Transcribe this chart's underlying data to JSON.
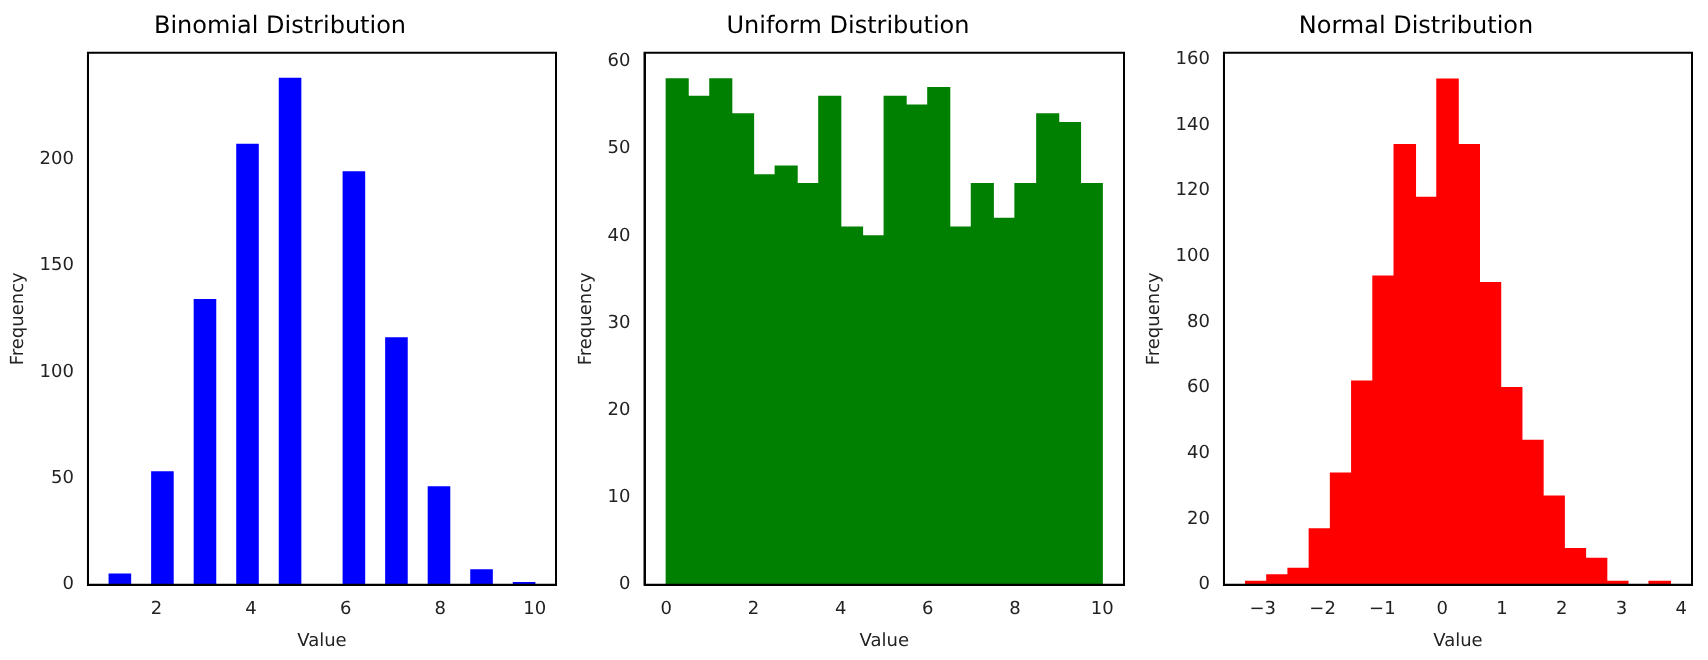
{
  "chart_data": [
    {
      "type": "histogram",
      "title": "Binomial Distribution",
      "xlabel": "Value",
      "ylabel": "Frequency",
      "color": "#0000ff",
      "bins": [
        1,
        1.45,
        1.9,
        2.35,
        2.8,
        3.25,
        3.7,
        4.15,
        4.6,
        5.05,
        5.5,
        5.95,
        6.4,
        6.85,
        7.3,
        7.75,
        8.2,
        8.65,
        9.1,
        9.55,
        10
      ],
      "values": [
        5,
        0,
        53,
        0,
        134,
        0,
        207,
        0,
        238,
        0,
        0,
        194,
        0,
        116,
        0,
        46,
        0,
        7,
        0,
        1
      ],
      "xlim": [
        0.55,
        10.45
      ],
      "ylim": [
        0,
        250
      ],
      "xticks": [
        2,
        4,
        6,
        8,
        10
      ],
      "yticks": [
        0,
        50,
        100,
        150,
        200
      ]
    },
    {
      "type": "histogram",
      "title": "Uniform Distribution",
      "xlabel": "Value",
      "ylabel": "Frequency",
      "color": "#008000",
      "bins": [
        0,
        0.5,
        1,
        1.5,
        2,
        2.5,
        3,
        3.5,
        4,
        4.5,
        5,
        5.5,
        6,
        6.5,
        7,
        7.5,
        8,
        8.5,
        9,
        9.5,
        10
      ],
      "values": [
        58,
        56,
        58,
        54,
        47,
        48,
        46,
        56,
        41,
        40,
        56,
        55,
        57,
        41,
        46,
        42,
        46,
        54,
        53,
        46
      ],
      "xlim": [
        -0.5,
        10.5
      ],
      "ylim": [
        0,
        61
      ],
      "xticks": [
        0,
        2,
        4,
        6,
        8,
        10
      ],
      "yticks": [
        0,
        10,
        20,
        30,
        40,
        50,
        60
      ]
    },
    {
      "type": "histogram",
      "title": "Normal Distribution",
      "xlabel": "Value",
      "ylabel": "Frequency",
      "color": "#ff0000",
      "bins": [
        -3.29,
        -2.93,
        -2.58,
        -2.22,
        -1.87,
        -1.51,
        -1.16,
        -0.8,
        -0.45,
        -0.09,
        0.27,
        0.62,
        0.98,
        1.33,
        1.69,
        2.04,
        2.4,
        2.75,
        3.11,
        3.46,
        3.82
      ],
      "values": [
        1,
        3,
        5,
        17,
        34,
        62,
        94,
        134,
        118,
        154,
        134,
        92,
        60,
        44,
        27,
        11,
        8,
        1,
        0,
        1
      ],
      "xlim": [
        -3.65,
        4.18
      ],
      "ylim": [
        0,
        162
      ],
      "xticks": [
        {
          "value": -3,
          "label": "−3"
        },
        {
          "value": -2,
          "label": "−2"
        },
        {
          "value": -1,
          "label": "−1"
        },
        0,
        1,
        2,
        3,
        4
      ],
      "yticks": [
        0,
        20,
        40,
        60,
        80,
        100,
        120,
        140,
        160
      ]
    }
  ]
}
